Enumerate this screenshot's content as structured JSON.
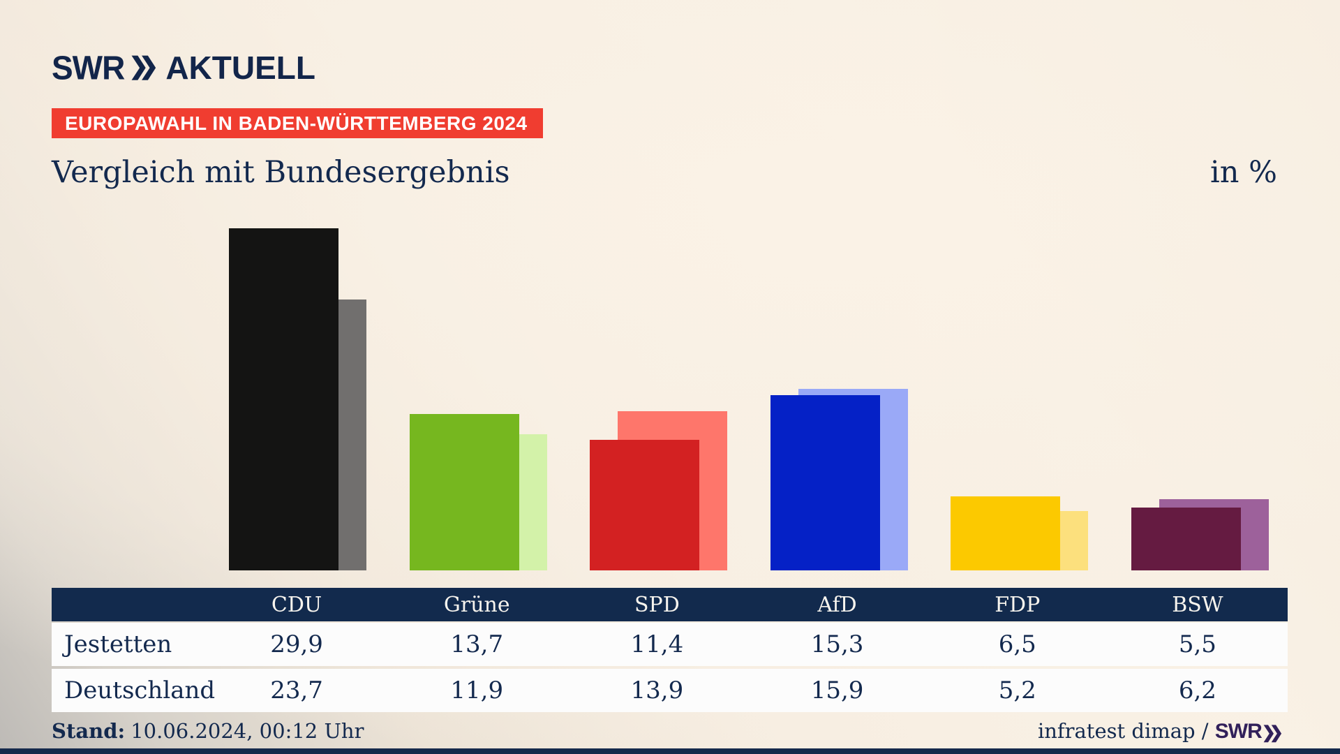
{
  "header": {
    "brand": {
      "swr": "SWR",
      "chevron": "❯❯",
      "aktuell": "AKTUELL"
    },
    "badge": "EUROPAWAHL IN BADEN-WÜRTTEMBERG 2024",
    "title": "Vergleich mit Bundesergebnis",
    "unit_label": "in %"
  },
  "chart_data": {
    "type": "bar",
    "categories": [
      "CDU",
      "Grüne",
      "SPD",
      "AfD",
      "FDP",
      "BSW"
    ],
    "series": [
      {
        "name": "Jestetten",
        "values": [
          29.9,
          13.7,
          11.4,
          15.3,
          6.5,
          5.5
        ]
      },
      {
        "name": "Deutschland",
        "values": [
          23.7,
          11.9,
          13.9,
          15.9,
          5.2,
          6.2
        ]
      }
    ],
    "unit": "%",
    "ylim": [
      0,
      31
    ],
    "grid": false,
    "legend": "none (values shown in table below)",
    "colors": {
      "Jestetten": [
        "#141413",
        "#76b71f",
        "#d32122",
        "#0521c6",
        "#fcc900",
        "#651b41"
      ],
      "Deutschland": [
        "#716f6e",
        "#d3f2a9",
        "#fe766b",
        "#9aa9f7",
        "#fce07d",
        "#9d619b"
      ]
    }
  },
  "table": {
    "columns": [
      "CDU",
      "Grüne",
      "SPD",
      "AfD",
      "FDP",
      "BSW"
    ],
    "rows": [
      {
        "label": "Jestetten",
        "values": [
          "29,9",
          "13,7",
          "11,4",
          "15,3",
          "6,5",
          "5,5"
        ]
      },
      {
        "label": "Deutschland",
        "values": [
          "23,7",
          "11,9",
          "13,9",
          "15,9",
          "5,2",
          "6,2"
        ]
      }
    ]
  },
  "footer": {
    "stand_label": "Stand:",
    "stand_value": "10.06.2024, 00:12 Uhr",
    "source_text": "infratest dimap / ",
    "source_brand_swr": "SWR",
    "source_brand_chevron": "❯❯"
  },
  "colors": {
    "background_cream": "#f8efe3",
    "background_vignette_gray": "#bdbab6",
    "navy_text": "#13294e",
    "badge_red": "#f03d30",
    "table_header_bg": "#122a4d",
    "table_row_bg": "#fcfcfc",
    "footer_brand_purple": "#31205a",
    "bottom_bar_navy": "#15294b"
  }
}
